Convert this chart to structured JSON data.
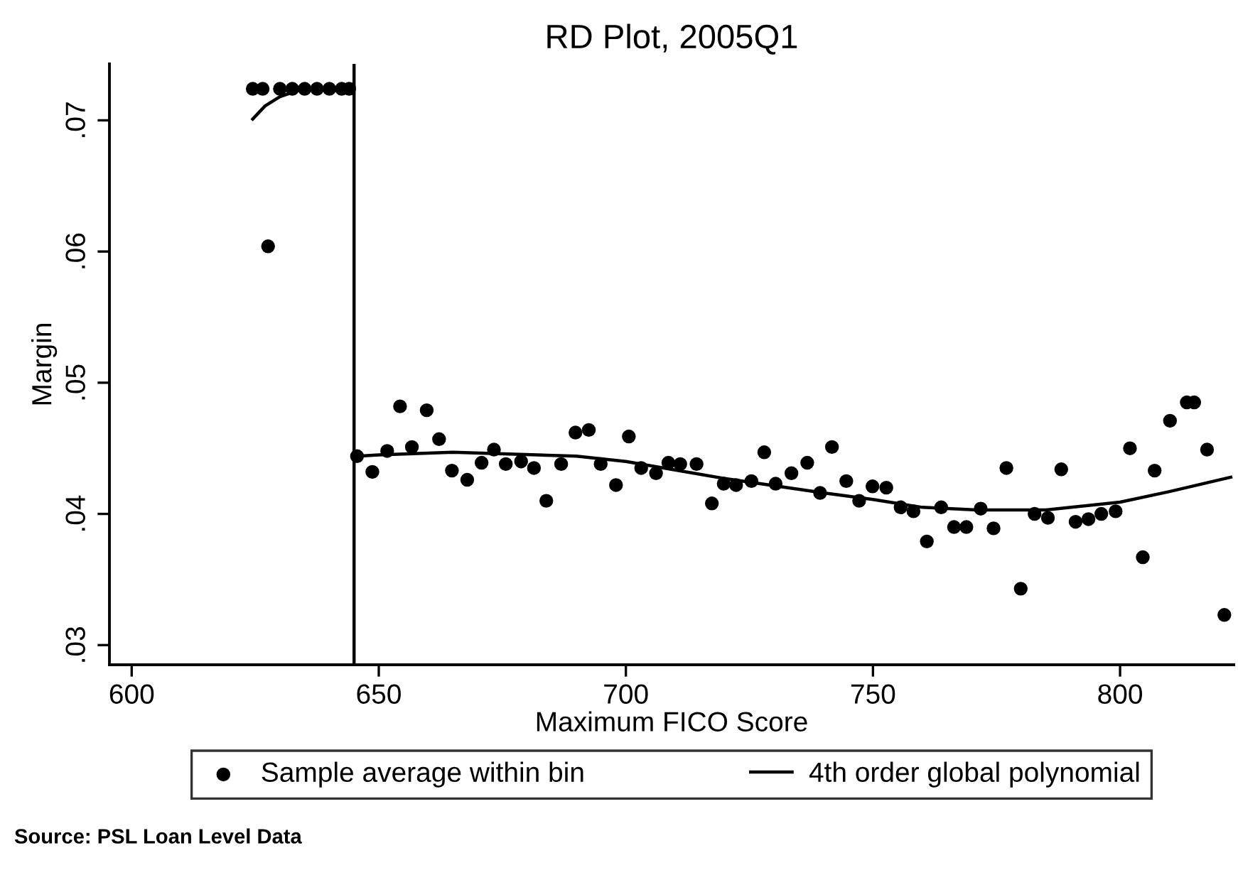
{
  "chart_data": {
    "type": "scatter",
    "title": "RD Plot, 2005Q1",
    "xlabel": "Maximum FICO Score",
    "ylabel": "Margin",
    "xlim": [
      595.5,
      823
    ],
    "ylim": [
      0.0285,
      0.0743
    ],
    "xticks": [
      600,
      650,
      700,
      750,
      800
    ],
    "yticks": [
      {
        "value": 0.03,
        "label": ".03"
      },
      {
        "value": 0.04,
        "label": ".04"
      },
      {
        "value": 0.05,
        "label": ".05"
      },
      {
        "value": 0.06,
        "label": ".06"
      },
      {
        "value": 0.07,
        "label": ".07"
      }
    ],
    "grid": false,
    "legend": "bottom",
    "marker": "circle",
    "ref_lines": [
      {
        "axis": "x",
        "value": 645,
        "label": null,
        "color": "#000000"
      }
    ],
    "series": [
      {
        "name": "Sample average within bin",
        "color": "#000000",
        "x": [
          624.5,
          626.5,
          627.6,
          630,
          632.5,
          635,
          637.5,
          640,
          642.5,
          644,
          645.6,
          648.7,
          651.7,
          654.3,
          656.7,
          659.7,
          662.2,
          664.8,
          667.9,
          670.8,
          673.3,
          675.7,
          678.8,
          681.4,
          683.9,
          686.9,
          689.8,
          692.5,
          694.9,
          698.0,
          700.6,
          703.1,
          706.1,
          708.6,
          711.0,
          714.3,
          717.4,
          719.8,
          722.3,
          725.4,
          728.0,
          730.3,
          733.5,
          736.7,
          739.3,
          741.7,
          744.6,
          747.2,
          749.9,
          752.7,
          755.6,
          758.2,
          760.9,
          763.8,
          766.4,
          768.9,
          771.8,
          774.4,
          777.0,
          779.9,
          782.7,
          785.4,
          788.1,
          791.0,
          793.6,
          796.2,
          799.1,
          802.0,
          804.6,
          807.0,
          810.1,
          813.5,
          815.0,
          817.6,
          821.1
        ],
        "values": [
          0.0724,
          0.0724,
          0.0604,
          0.0724,
          0.0724,
          0.0724,
          0.0724,
          0.0724,
          0.0724,
          0.0724,
          0.0444,
          0.0432,
          0.0448,
          0.0482,
          0.0451,
          0.0479,
          0.0457,
          0.0433,
          0.0426,
          0.0439,
          0.0449,
          0.0438,
          0.044,
          0.0435,
          0.041,
          0.0438,
          0.0462,
          0.0464,
          0.0438,
          0.0422,
          0.0459,
          0.0435,
          0.0431,
          0.0439,
          0.0438,
          0.0438,
          0.0408,
          0.0423,
          0.0422,
          0.0425,
          0.0447,
          0.0423,
          0.0431,
          0.0439,
          0.0416,
          0.0451,
          0.0425,
          0.041,
          0.0421,
          0.042,
          0.0405,
          0.0402,
          0.0379,
          0.0405,
          0.039,
          0.039,
          0.0404,
          0.0389,
          0.0435,
          0.0343,
          0.04,
          0.0397,
          0.0434,
          0.0394,
          0.0396,
          0.04,
          0.0402,
          0.045,
          0.0367,
          0.0433,
          0.0471,
          0.0485,
          0.0485,
          0.0449,
          0.0323
        ]
      },
      {
        "name": "4th order global polynomial",
        "type": "line",
        "color": "#000000",
        "marker": "none",
        "line_style": "solid",
        "x": [
          624.5,
          627,
          630,
          633,
          636,
          645
        ],
        "values": [
          0.0701,
          0.0711,
          0.0718,
          0.0722,
          0.0724,
          0.0725
        ]
      },
      {
        "type": "line",
        "color": "#000000",
        "marker": "none",
        "line_style": "solid",
        "x": [
          645.6,
          650,
          665,
          690,
          700,
          720,
          740,
          750,
          760,
          771,
          785,
          800,
          810,
          822.4
        ],
        "values": [
          0.0444,
          0.0445,
          0.0447,
          0.0444,
          0.044,
          0.0427,
          0.0416,
          0.0411,
          0.0405,
          0.0403,
          0.0403,
          0.0409,
          0.0417,
          0.0428
        ]
      }
    ],
    "annotations": [
      "Source: PSL Loan Level Data"
    ]
  }
}
